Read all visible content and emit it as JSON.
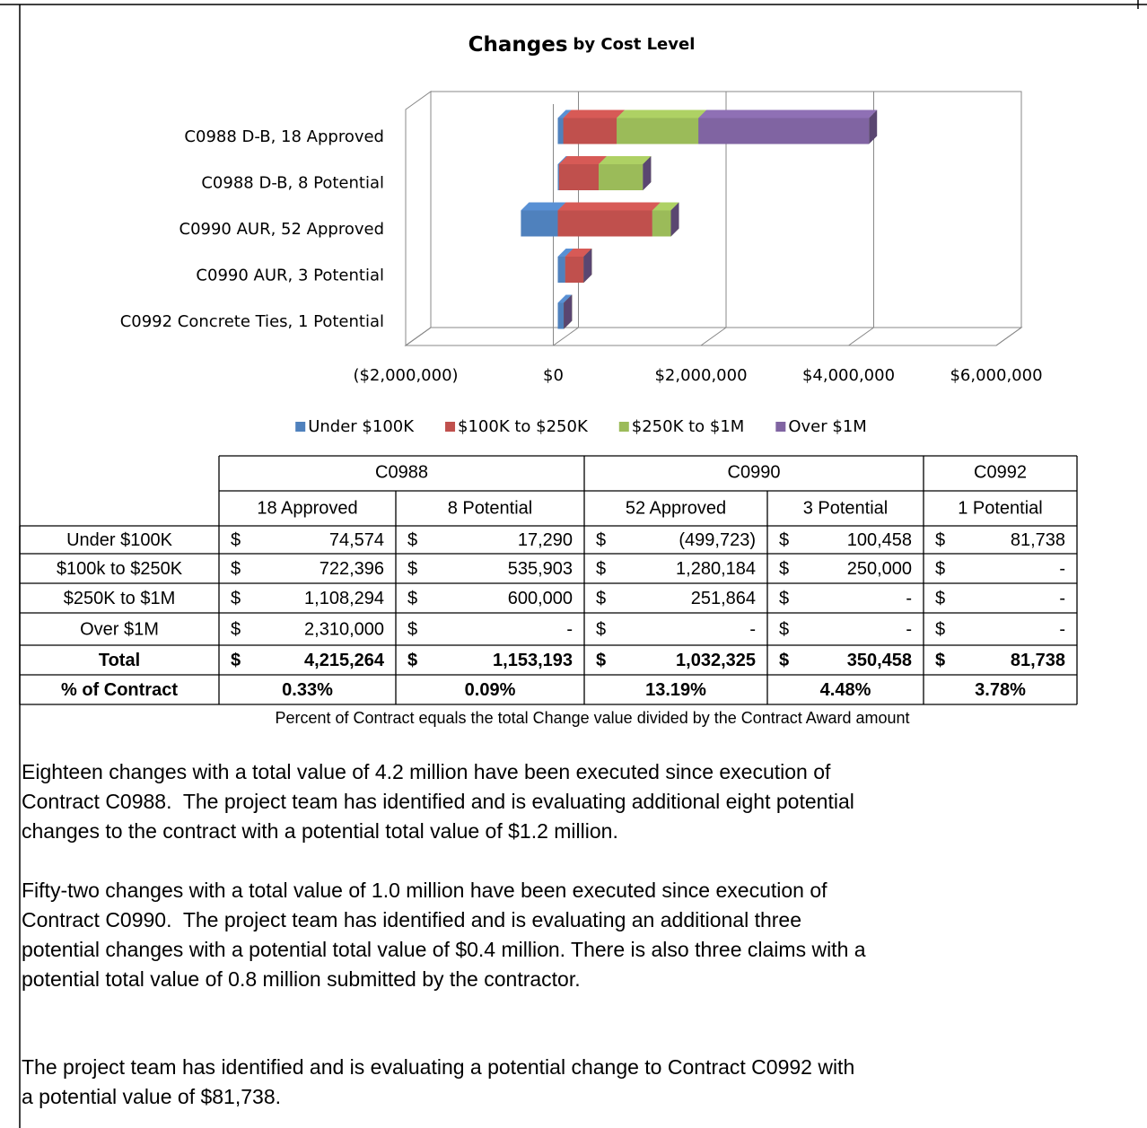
{
  "chart_data": {
    "type": "bar",
    "orientation": "horizontal",
    "stacked": true,
    "three_d": true,
    "title": "Changes",
    "subtitle": "by Cost Level",
    "categories": [
      "C0988 D-B, 18 Approved",
      "C0988 D-B, 8 Potential",
      "C0990 AUR, 52 Approved",
      "C0990 AUR, 3 Potential",
      "C0992 Concrete Ties, 1 Potential"
    ],
    "series": [
      {
        "name": "Under $100K",
        "color": "#4f81bd",
        "values": [
          74574,
          17290,
          -499723,
          100458,
          81738
        ]
      },
      {
        "name": "$100K to $250K",
        "color": "#c0504d",
        "values": [
          722396,
          535903,
          1280184,
          250000,
          0
        ]
      },
      {
        "name": "$250K to $1M",
        "color": "#9bbb59",
        "values": [
          1108294,
          600000,
          251864,
          0,
          0
        ]
      },
      {
        "name": "Over $1M",
        "color": "#8064a2",
        "values": [
          2310000,
          0,
          0,
          0,
          0
        ]
      }
    ],
    "xlim": [
      -2000000,
      6000000
    ],
    "xticks": [
      {
        "value": -2000000,
        "label": "($2,000,000)"
      },
      {
        "value": 0,
        "label": "$0"
      },
      {
        "value": 2000000,
        "label": "$2,000,000"
      },
      {
        "value": 4000000,
        "label": "$4,000,000"
      },
      {
        "value": 6000000,
        "label": "$6,000,000"
      }
    ],
    "negative_tick_color": "#ff0000",
    "grid": true,
    "legend": "bottom"
  },
  "table": {
    "currency": "$",
    "groups": [
      {
        "label": "C0988",
        "columns": [
          "18 Approved",
          "8 Potential"
        ]
      },
      {
        "label": "C0990",
        "columns": [
          "52 Approved",
          "3 Potential"
        ]
      },
      {
        "label": "C0992",
        "columns": [
          "1 Potential"
        ]
      }
    ],
    "rows": [
      {
        "label": "Under $100K",
        "amounts": [
          "74,574",
          "17,290",
          "(499,723)",
          "100,458",
          "81,738"
        ]
      },
      {
        "label": "$100k to $250K",
        "amounts": [
          "722,396",
          "535,903",
          "1,280,184",
          "250,000",
          "-"
        ]
      },
      {
        "label": "$250K to $1M",
        "amounts": [
          "1,108,294",
          "600,000",
          "251,864",
          "-",
          "-"
        ]
      },
      {
        "label": "Over $1M",
        "amounts": [
          "2,310,000",
          "-",
          "-",
          "-",
          "-"
        ]
      }
    ],
    "total_row": {
      "label": "Total",
      "amounts": [
        "4,215,264",
        "1,153,193",
        "1,032,325",
        "350,458",
        "81,738"
      ]
    },
    "percent_row": {
      "label": "% of Contract",
      "values": [
        "0.33%",
        "0.09%",
        "13.19%",
        "4.48%",
        "3.78%"
      ]
    },
    "caption": "Percent of Contract equals the total Change value divided by the Contract Award amount"
  },
  "paragraphs": [
    [
      "Eighteen changes with a total value of 4.2 million have been executed since execution of",
      "Contract C0988.  The project team has identified and is evaluating additional eight potential",
      "changes to the contract with a potential total value of $1.2 million."
    ],
    [
      "Fifty-two changes with a total value of 1.0 million have been executed since execution of",
      "Contract C0990.  The project team has identified and is evaluating an additional three",
      "potential changes with a potential total value of $0.4 million. There is also three claims with a",
      "potential total value of 0.8 million submitted by the contractor."
    ],
    [
      "The project team has identified and is evaluating a potential change to Contract C0992 with",
      "a potential value of $81,738."
    ]
  ]
}
